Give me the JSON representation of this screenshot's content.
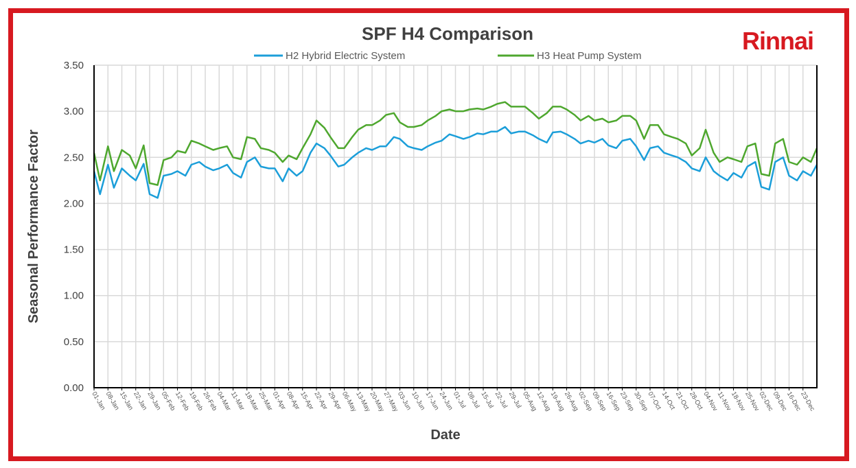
{
  "brand": {
    "logo_text": "Rinnai",
    "color": "#D71920"
  },
  "chart_data": {
    "type": "line",
    "title": "SPF H4 Comparison",
    "xlabel": "Date",
    "ylabel": "Seasonal Performance Factor",
    "ylim": [
      0,
      3.5
    ],
    "yticks": [
      "0.00",
      "0.50",
      "1.00",
      "1.50",
      "2.00",
      "2.50",
      "3.00",
      "3.50"
    ],
    "grid": true,
    "legend_position": "top",
    "xtick_labels": [
      "01-Jan",
      "08-Jan",
      "15-Jan",
      "22-Jan",
      "29-Jan",
      "05-Feb",
      "12-Feb",
      "19-Feb",
      "26-Feb",
      "04-Mar",
      "11-Mar",
      "18-Mar",
      "25-Mar",
      "01-Apr",
      "08-Apr",
      "15-Apr",
      "22-Apr",
      "29-Apr",
      "06-May",
      "13-May",
      "20-May",
      "27-May",
      "03-Jun",
      "10-Jun",
      "17-Jun",
      "24-Jun",
      "01-Jul",
      "08-Jul",
      "15-Jul",
      "22-Jul",
      "29-Jul",
      "05-Aug",
      "12-Aug",
      "19-Aug",
      "26-Aug",
      "02-Sep",
      "09-Sep",
      "16-Sep",
      "23-Sep",
      "30-Sep",
      "07-Oct",
      "14-Oct",
      "21-Oct",
      "28-Oct",
      "04-Nov",
      "11-Nov",
      "18-Nov",
      "25-Nov",
      "02-Dec",
      "09-Dec",
      "16-Dec",
      "23-Dec"
    ],
    "x_day_of_year": [
      0,
      3,
      7,
      10,
      14,
      18,
      21,
      25,
      28,
      32,
      35,
      39,
      42,
      46,
      49,
      53,
      56,
      60,
      63,
      67,
      70,
      74,
      77,
      81,
      84,
      88,
      91,
      95,
      98,
      102,
      105,
      109,
      112,
      116,
      119,
      123,
      126,
      130,
      133,
      137,
      140,
      144,
      147,
      151,
      154,
      158,
      161,
      165,
      168,
      172,
      175,
      179,
      182,
      186,
      189,
      193,
      196,
      200,
      203,
      207,
      210,
      214,
      217,
      221,
      224,
      228,
      231,
      235,
      238,
      242,
      245,
      249,
      252,
      256,
      259,
      263,
      266,
      270,
      273,
      277,
      280,
      284,
      287,
      291,
      294,
      298,
      301,
      305,
      308,
      312,
      315,
      319,
      322,
      326,
      329,
      333,
      336,
      340,
      343,
      347,
      350,
      354,
      357,
      361,
      364
    ],
    "series": [
      {
        "name": "H2 Hybrid Electric System",
        "color": "#1B9ED9",
        "values": [
          2.35,
          2.1,
          2.42,
          2.17,
          2.38,
          2.3,
          2.25,
          2.43,
          2.1,
          2.06,
          2.3,
          2.32,
          2.35,
          2.3,
          2.42,
          2.45,
          2.4,
          2.36,
          2.38,
          2.42,
          2.33,
          2.28,
          2.45,
          2.5,
          2.4,
          2.38,
          2.38,
          2.24,
          2.38,
          2.3,
          2.35,
          2.55,
          2.65,
          2.6,
          2.52,
          2.4,
          2.42,
          2.5,
          2.55,
          2.6,
          2.58,
          2.62,
          2.62,
          2.72,
          2.7,
          2.62,
          2.6,
          2.58,
          2.62,
          2.66,
          2.68,
          2.75,
          2.73,
          2.7,
          2.72,
          2.76,
          2.75,
          2.78,
          2.78,
          2.83,
          2.76,
          2.78,
          2.78,
          2.74,
          2.7,
          2.66,
          2.77,
          2.78,
          2.75,
          2.7,
          2.65,
          2.68,
          2.66,
          2.7,
          2.63,
          2.6,
          2.68,
          2.7,
          2.62,
          2.47,
          2.6,
          2.62,
          2.55,
          2.52,
          2.5,
          2.45,
          2.38,
          2.35,
          2.5,
          2.35,
          2.3,
          2.25,
          2.33,
          2.28,
          2.4,
          2.45,
          2.18,
          2.15,
          2.45,
          2.5,
          2.3,
          2.25,
          2.35,
          2.3,
          2.42
        ]
      },
      {
        "name": "H3 Heat Pump System",
        "color": "#4EA72E",
        "values": [
          2.55,
          2.25,
          2.62,
          2.35,
          2.58,
          2.52,
          2.38,
          2.63,
          2.22,
          2.2,
          2.47,
          2.5,
          2.57,
          2.55,
          2.68,
          2.65,
          2.62,
          2.58,
          2.6,
          2.62,
          2.5,
          2.48,
          2.72,
          2.7,
          2.6,
          2.58,
          2.55,
          2.45,
          2.52,
          2.48,
          2.6,
          2.75,
          2.9,
          2.82,
          2.72,
          2.6,
          2.6,
          2.72,
          2.8,
          2.85,
          2.85,
          2.9,
          2.96,
          2.98,
          2.88,
          2.83,
          2.83,
          2.85,
          2.9,
          2.95,
          3.0,
          3.02,
          3.0,
          3.0,
          3.02,
          3.03,
          3.02,
          3.05,
          3.08,
          3.1,
          3.05,
          3.05,
          3.05,
          2.98,
          2.92,
          2.98,
          3.05,
          3.05,
          3.02,
          2.96,
          2.9,
          2.95,
          2.9,
          2.92,
          2.88,
          2.9,
          2.95,
          2.95,
          2.9,
          2.7,
          2.85,
          2.85,
          2.75,
          2.72,
          2.7,
          2.65,
          2.52,
          2.6,
          2.8,
          2.55,
          2.45,
          2.5,
          2.48,
          2.45,
          2.62,
          2.65,
          2.32,
          2.3,
          2.65,
          2.7,
          2.45,
          2.42,
          2.5,
          2.45,
          2.6
        ]
      }
    ]
  }
}
